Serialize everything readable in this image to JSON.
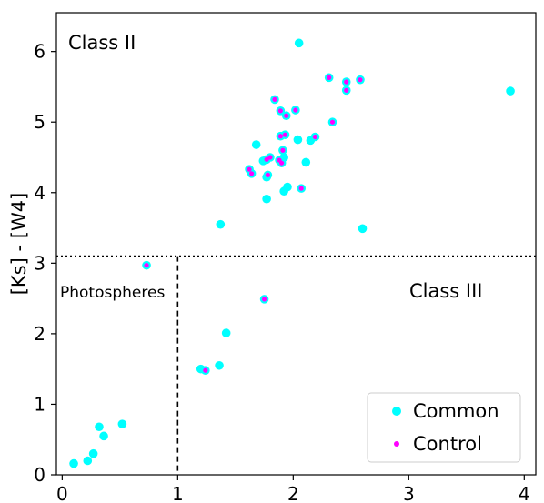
{
  "chart_data": {
    "type": "scatter",
    "title": "",
    "xlabel": "",
    "ylabel": "[Ks] - [W4]",
    "xlim": [
      -0.05,
      4.1
    ],
    "ylim": [
      0,
      6.55
    ],
    "x_ticks": [
      0,
      1,
      2,
      3,
      4
    ],
    "y_ticks": [
      0,
      1,
      2,
      3,
      4,
      5,
      6
    ],
    "grid": false,
    "legend_position": "lower-right",
    "annotations": {
      "class2": "Class  II",
      "class3": "Class III",
      "photospheres": "Photospheres",
      "hline_y": 3.1,
      "vline_x": 1.0
    },
    "series": [
      {
        "name": "Common",
        "color": "#00ffff",
        "points": [
          [
            0.1,
            0.16
          ],
          [
            0.22,
            0.2
          ],
          [
            0.27,
            0.3
          ],
          [
            0.32,
            0.68
          ],
          [
            0.36,
            0.55
          ],
          [
            0.52,
            0.72
          ],
          [
            0.73,
            2.97
          ],
          [
            1.2,
            1.5
          ],
          [
            1.24,
            1.48
          ],
          [
            1.36,
            1.55
          ],
          [
            1.42,
            2.01
          ],
          [
            1.37,
            3.55
          ],
          [
            1.75,
            2.49
          ],
          [
            2.6,
            3.49
          ],
          [
            1.77,
            3.91
          ],
          [
            1.92,
            4.02
          ],
          [
            1.95,
            4.08
          ],
          [
            1.77,
            4.22
          ],
          [
            1.78,
            4.25
          ],
          [
            2.07,
            4.06
          ],
          [
            1.62,
            4.33
          ],
          [
            1.64,
            4.27
          ],
          [
            1.74,
            4.45
          ],
          [
            1.77,
            4.47
          ],
          [
            1.8,
            4.5
          ],
          [
            1.88,
            4.46
          ],
          [
            1.9,
            4.42
          ],
          [
            1.92,
            4.5
          ],
          [
            1.91,
            4.6
          ],
          [
            1.68,
            4.68
          ],
          [
            1.89,
            4.8
          ],
          [
            1.93,
            4.82
          ],
          [
            2.04,
            4.75
          ],
          [
            2.15,
            4.74
          ],
          [
            2.19,
            4.79
          ],
          [
            2.11,
            4.43
          ],
          [
            1.89,
            5.16
          ],
          [
            1.94,
            5.09
          ],
          [
            2.02,
            5.17
          ],
          [
            1.84,
            5.32
          ],
          [
            2.34,
            5.0
          ],
          [
            2.31,
            5.63
          ],
          [
            2.46,
            5.45
          ],
          [
            2.46,
            5.57
          ],
          [
            2.58,
            5.6
          ],
          [
            2.05,
            6.12
          ],
          [
            3.88,
            5.44
          ]
        ]
      },
      {
        "name": "Control",
        "color": "#ff00ff",
        "points": [
          [
            0.73,
            2.97
          ],
          [
            1.24,
            1.48
          ],
          [
            1.75,
            2.49
          ],
          [
            1.62,
            4.33
          ],
          [
            1.64,
            4.27
          ],
          [
            1.77,
            4.47
          ],
          [
            1.8,
            4.5
          ],
          [
            1.78,
            4.25
          ],
          [
            1.88,
            4.46
          ],
          [
            1.9,
            4.42
          ],
          [
            1.91,
            4.6
          ],
          [
            1.89,
            4.8
          ],
          [
            1.93,
            4.82
          ],
          [
            2.07,
            4.06
          ],
          [
            2.19,
            4.79
          ],
          [
            1.89,
            5.16
          ],
          [
            1.94,
            5.09
          ],
          [
            2.02,
            5.17
          ],
          [
            1.84,
            5.32
          ],
          [
            2.34,
            5.0
          ],
          [
            2.31,
            5.63
          ],
          [
            2.46,
            5.45
          ],
          [
            2.46,
            5.57
          ],
          [
            2.58,
            5.6
          ]
        ]
      }
    ]
  }
}
